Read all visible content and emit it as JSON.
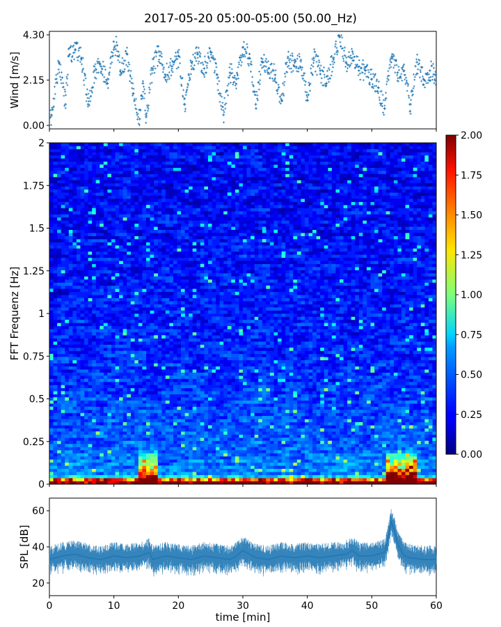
{
  "figure": {
    "title": "2017-05-20 05:00-05:00 (50.00_Hz)"
  },
  "colors": {
    "series": "#1f77b4",
    "colormap": "jet",
    "axis": "#000000"
  },
  "chart_data": [
    {
      "type": "scatter",
      "name": "wind",
      "ylabel": "Wind [m/s]",
      "xlim": [
        0,
        60
      ],
      "ylim": [
        0,
        4.3
      ],
      "yticks": [
        "0.00",
        "2.15",
        "4.30"
      ],
      "marker": "+",
      "x_tick_labels_shown": false,
      "series": [
        {
          "x": [
            0.3,
            1.5,
            2.5,
            3.0,
            4.0,
            5.0,
            6.0,
            7.0,
            8.0,
            9.0,
            10.0,
            10.5,
            11.0,
            12.0,
            13.0,
            14.0,
            14.5,
            15.0,
            16.0,
            17.0,
            18.0,
            19.0,
            20.0,
            21.0,
            22.0,
            23.0,
            24.0,
            25.0,
            26.0,
            27.0,
            28.0,
            29.0,
            30.0,
            31.0,
            32.0,
            33.0,
            34.0,
            35.0,
            36.0,
            37.0,
            38.0,
            39.0,
            40.0,
            41.0,
            42.0,
            43.0,
            44.0,
            45.0,
            46.0,
            47.0,
            48.0,
            49.0,
            50.0,
            51.0,
            52.0,
            53.0,
            54.0,
            55.0,
            56.0,
            57.0,
            58.0,
            59.0,
            59.8
          ],
          "y": [
            0.5,
            3.0,
            1.0,
            3.3,
            3.6,
            3.2,
            1.0,
            2.6,
            2.8,
            2.0,
            3.6,
            3.8,
            2.4,
            3.4,
            1.5,
            0.3,
            2.0,
            0.4,
            2.7,
            3.5,
            2.4,
            2.8,
            3.3,
            1.0,
            3.0,
            3.4,
            2.7,
            3.5,
            2.4,
            0.5,
            2.5,
            2.2,
            3.7,
            3.2,
            1.0,
            3.0,
            2.7,
            2.4,
            1.2,
            3.2,
            2.8,
            3.1,
            1.2,
            3.2,
            2.6,
            2.0,
            3.2,
            4.2,
            3.0,
            3.5,
            2.6,
            2.6,
            2.2,
            1.8,
            0.8,
            3.2,
            2.5,
            2.6,
            1.0,
            3.0,
            2.2,
            2.6,
            2.4
          ]
        }
      ]
    },
    {
      "type": "heatmap",
      "name": "spectrogram",
      "ylabel": "FFT Frequenz [Hz]",
      "xlim": [
        0,
        60
      ],
      "ylim": [
        0,
        2
      ],
      "yticks": [
        "0",
        "0.25",
        "0.5",
        "0.75",
        "1",
        "1.25",
        "1.5",
        "1.75",
        "2"
      ],
      "x_tick_labels_shown": false,
      "colorbar": {
        "min": 0,
        "max": 2,
        "ticks": [
          "0.00",
          "0.25",
          "0.50",
          "0.75",
          "1.00",
          "1.25",
          "1.50",
          "1.75",
          "2.00"
        ]
      },
      "hotspots": [
        {
          "t_start": 14,
          "t_end": 17,
          "f_max": 0.22,
          "level": 0.9
        },
        {
          "t_start": 52,
          "t_end": 57,
          "f_max": 0.2,
          "level": 1.1
        },
        {
          "t_start": 0,
          "t_end": 60,
          "f_max": 0.05,
          "level": 1.4
        }
      ]
    },
    {
      "type": "line",
      "name": "spl",
      "xlabel": "time [min]",
      "ylabel": "SPL [dB]",
      "xlim": [
        0,
        60
      ],
      "ylim": [
        13,
        67
      ],
      "xticks": [
        "0",
        "10",
        "20",
        "30",
        "40",
        "50",
        "60"
      ],
      "yticks": [
        "20",
        "40",
        "60"
      ],
      "series": [
        {
          "x": [
            0,
            2,
            4,
            6,
            8,
            10,
            12,
            14,
            15.5,
            16,
            18,
            20,
            22,
            24,
            26,
            28,
            29,
            30,
            31,
            32,
            34,
            36,
            38,
            40,
            42,
            44,
            46,
            47,
            48,
            50,
            52,
            52.5,
            53,
            53.5,
            54,
            55,
            56,
            58,
            60
          ],
          "y": [
            33,
            35,
            36,
            34,
            33,
            35,
            34,
            35,
            37,
            33,
            35,
            34,
            33,
            35,
            34,
            33,
            35,
            38,
            36,
            34,
            33,
            35,
            34,
            35,
            34,
            35,
            36,
            38,
            35,
            35,
            37,
            44,
            54,
            49,
            42,
            35,
            34,
            33,
            33
          ],
          "band": 6
        }
      ]
    }
  ]
}
